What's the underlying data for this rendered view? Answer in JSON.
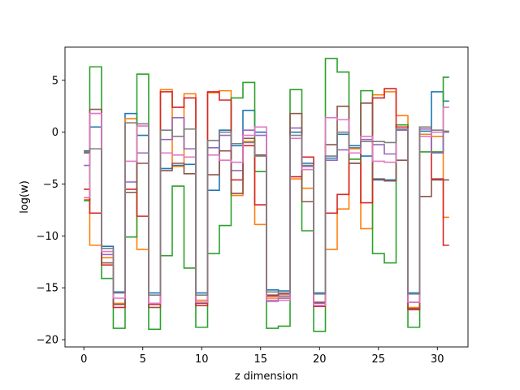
{
  "chart_data": {
    "type": "line",
    "drawstyle": "steps-mid",
    "title": "",
    "xlabel": "z dimension",
    "ylabel": "log(w)",
    "xlim": [
      -1.6,
      32.6
    ],
    "ylim": [
      -20.7,
      8.2
    ],
    "xticks": [
      0,
      5,
      10,
      15,
      20,
      25,
      30
    ],
    "yticks": [
      -20,
      -15,
      -10,
      -5,
      0,
      5
    ],
    "grid": false,
    "legend": "none",
    "x": [
      0,
      1,
      2,
      3,
      4,
      5,
      6,
      7,
      8,
      9,
      10,
      11,
      12,
      13,
      14,
      15,
      16,
      17,
      18,
      19,
      20,
      21,
      22,
      23,
      24,
      25,
      26,
      27,
      28,
      29,
      30,
      31
    ],
    "series": [
      {
        "color": "#1f77b4",
        "values": [
          -1.8,
          0.5,
          -11.0,
          -15.4,
          1.8,
          -0.3,
          -15.5,
          -3.5,
          -3.2,
          -3.1,
          -15.5,
          -5.6,
          0.2,
          -1.3,
          2.1,
          0.0,
          -15.2,
          -15.3,
          0.0,
          -3.0,
          -15.5,
          -2.5,
          -0.2,
          -1.3,
          -2.3,
          -4.6,
          -4.6,
          0.7,
          -15.5,
          0.1,
          3.9,
          3.0
        ]
      },
      {
        "color": "#ff7f0e",
        "values": [
          -6.5,
          -10.9,
          -12.1,
          -16.5,
          1.3,
          -11.3,
          -16.5,
          4.1,
          -3.3,
          3.7,
          -16.2,
          3.8,
          4.0,
          -6.1,
          -0.9,
          -8.9,
          -16.0,
          -16.0,
          -4.5,
          -5.4,
          -16.4,
          -11.3,
          -7.4,
          -1.6,
          -9.3,
          3.6,
          3.9,
          1.6,
          -16.9,
          -0.2,
          -0.4,
          -8.2
        ]
      },
      {
        "color": "#2ca02c",
        "values": [
          -6.6,
          6.3,
          -14.1,
          -18.9,
          -10.1,
          5.6,
          -19.0,
          -11.9,
          -5.2,
          -13.1,
          -18.8,
          -11.7,
          -9.0,
          3.3,
          4.8,
          -3.8,
          -18.9,
          -18.7,
          4.1,
          -9.5,
          -19.2,
          7.1,
          5.8,
          -2.6,
          4.0,
          -11.7,
          -12.6,
          0.7,
          -18.8,
          -1.9,
          -1.9,
          5.3
        ]
      },
      {
        "color": "#d62728",
        "values": [
          -5.5,
          -7.8,
          -12.8,
          -16.9,
          -5.5,
          -8.1,
          -16.6,
          3.9,
          2.4,
          3.3,
          -16.7,
          3.9,
          3.1,
          -4.6,
          -1.3,
          -7.0,
          -15.8,
          -15.6,
          -4.3,
          -2.4,
          -16.8,
          -7.8,
          -6.0,
          -3.0,
          -6.8,
          3.3,
          4.2,
          0.5,
          -17.1,
          0.5,
          -4.5,
          -10.9
        ]
      },
      {
        "color": "#9467bd",
        "values": [
          -3.2,
          1.8,
          -11.8,
          -16.6,
          -4.8,
          -2.0,
          -16.5,
          -0.7,
          1.4,
          -1.6,
          -16.4,
          -1.5,
          -0.3,
          -3.7,
          0.2,
          -0.3,
          -16.3,
          -16.0,
          0.4,
          -3.3,
          -16.5,
          -2.7,
          -1.7,
          -2.0,
          -0.7,
          -1.2,
          -2.1,
          0.2,
          -16.4,
          0.3,
          -2.0,
          0.0
        ]
      },
      {
        "color": "#8c564b",
        "values": [
          -2.0,
          2.2,
          -12.6,
          -16.6,
          -5.8,
          -3.0,
          -16.9,
          -3.7,
          -3.0,
          -4.0,
          -16.5,
          -4.1,
          -1.8,
          -5.9,
          -0.6,
          -2.2,
          -15.7,
          -15.8,
          1.8,
          -6.7,
          -16.4,
          -1.2,
          2.5,
          -3.0,
          2.8,
          -4.5,
          -4.7,
          -2.7,
          -17.0,
          -6.2,
          -4.6,
          -4.6
        ]
      },
      {
        "color": "#e377c2",
        "values": [
          -6.3,
          1.8,
          -11.5,
          -16.0,
          -2.8,
          0.6,
          -16.5,
          -2.0,
          -2.2,
          -2.4,
          -16.4,
          -2.2,
          -2.7,
          -2.9,
          -0.3,
          0.5,
          -16.2,
          -16.2,
          -0.6,
          -3.6,
          -16.7,
          1.4,
          1.2,
          -2.0,
          -0.4,
          -2.8,
          -2.9,
          0.3,
          -16.4,
          -0.4,
          0.0,
          2.4
        ]
      },
      {
        "color": "#7f7f7f",
        "values": [
          -1.9,
          -1.6,
          -11.2,
          -15.5,
          0.9,
          0.8,
          -15.7,
          0.2,
          -0.4,
          0.3,
          -15.7,
          -0.8,
          0.0,
          -1.1,
          -1.0,
          -2.3,
          -15.4,
          -15.5,
          -0.3,
          -3.2,
          -15.6,
          -2.3,
          0.0,
          -1.5,
          -0.9,
          -0.9,
          -1.0,
          0.3,
          -15.6,
          0.5,
          0.2,
          0.1
        ]
      }
    ]
  }
}
